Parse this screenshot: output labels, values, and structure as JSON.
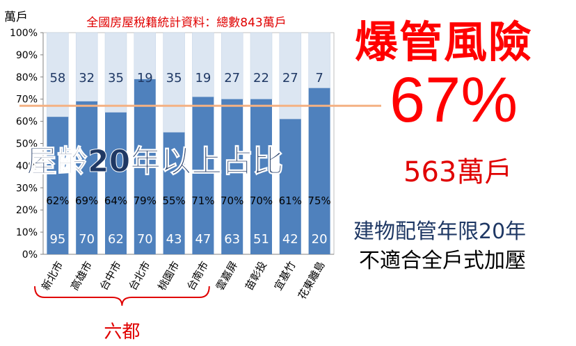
{
  "chart_data": {
    "type": "bar",
    "stacked": "percent",
    "title": "全國房屋稅籍統計資料：總數843萬戶",
    "ylabel": "萬戶",
    "ylim": [
      0,
      100
    ],
    "yticks": [
      "0%",
      "10%",
      "20%",
      "30%",
      "40%",
      "50%",
      "60%",
      "70%",
      "80%",
      "90%",
      "100%"
    ],
    "categories": [
      "新北市",
      "高雄市",
      "台中市",
      "台北市",
      "桃園市",
      "台南市",
      "雲嘉屏",
      "苗彰投",
      "宜基竹",
      "花東離島"
    ],
    "percent_labels": [
      "62%",
      "69%",
      "64%",
      "79%",
      "55%",
      "71%",
      "70%",
      "70%",
      "61%",
      "75%"
    ],
    "series": [
      {
        "values": [
          95,
          70,
          62,
          70,
          43,
          47,
          63,
          51,
          42,
          20
        ],
        "share": [
          62,
          69,
          64,
          79,
          55,
          71,
          70,
          70,
          61,
          75
        ],
        "color": "#4f81bd"
      },
      {
        "values": [
          58,
          32,
          35,
          19,
          35,
          19,
          27,
          22,
          27,
          7
        ],
        "share": [
          38,
          31,
          36,
          21,
          45,
          29,
          30,
          30,
          39,
          25
        ],
        "color": "#dce6f2"
      }
    ],
    "reference_line": {
      "value": 67,
      "color": "#f4b183"
    },
    "group_bracket": {
      "label": "六都",
      "first": 0,
      "last": 5
    },
    "grid": false,
    "legend": "none"
  },
  "overlay": {
    "text": "屋齡20年以上占比"
  },
  "side": {
    "headline": "爆管風險",
    "percent": "67%",
    "households": "563萬戶",
    "note_line1": "建物配管年限20年",
    "note_line2": "不適合全戶式加壓"
  },
  "colors": {
    "accent_red": "#ff0000",
    "navy": "#1f3864",
    "bar_old": "#4f81bd",
    "bar_new": "#dce6f2"
  }
}
